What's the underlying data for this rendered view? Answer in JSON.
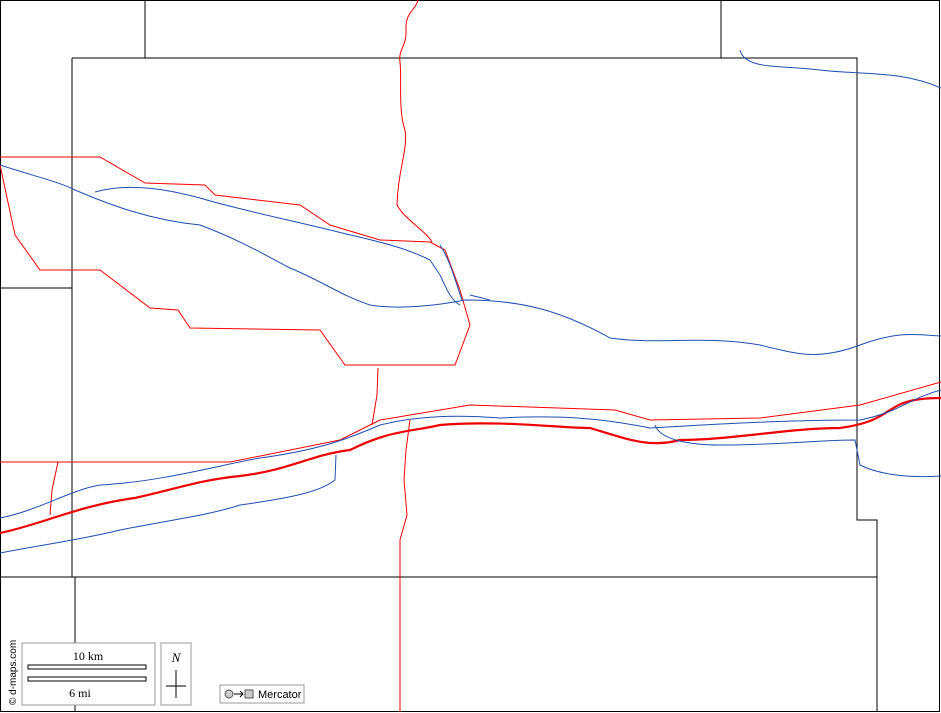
{
  "scale_bar": {
    "km_label": "10 km",
    "mi_label": "6 mi"
  },
  "north": "N",
  "projection": "Mercator",
  "credit": "© d-maps.com"
}
